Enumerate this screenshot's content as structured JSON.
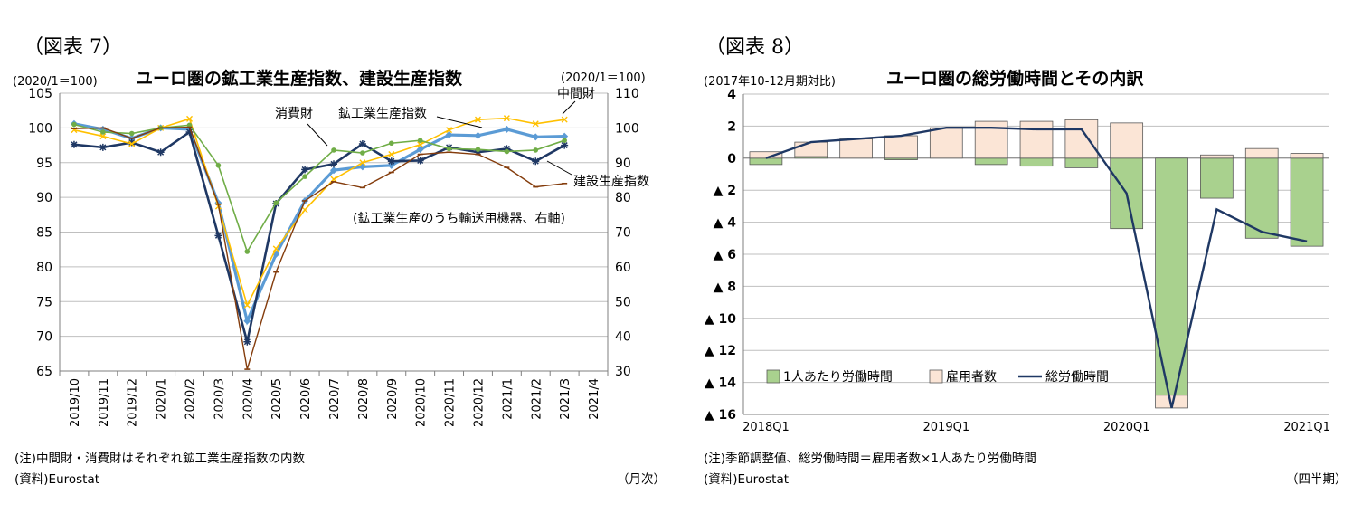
{
  "left": {
    "figure_label": "（図表 7）",
    "unit_left": "(2020/1＝100)",
    "unit_right": "(2020/1＝100)",
    "title": "ユーロ圏の鉱工業生産指数、建設生産指数",
    "note": "(注)中間財・消費財はそれぞれ鉱工業生産指数の内数",
    "source": "(資料)Eurostat",
    "period": "（月次）",
    "colors": {
      "industry": "#5b9bd5",
      "construction": "#1f3864",
      "intermediate": "#ffc000",
      "consumer": "#70ad47",
      "transport": "#843c0c"
    }
  },
  "right": {
    "figure_label": "（図表 8）",
    "unit": "(2017年10-12月期対比)",
    "title": "ユーロ圏の総労働時間とその内訳",
    "note": "(注)季節調整値、総労働時間＝雇用者数×1人あたり労働時間",
    "source": "(資料)Eurostat",
    "period": "（四半期）",
    "colors": {
      "hours_per_worker": "#a9d18e",
      "employees": "#fbe5d6",
      "total_hours": "#1f3864"
    }
  },
  "chart_data": [
    {
      "type": "line",
      "title": "ユーロ圏の鉱工業生産指数、建設生産指数",
      "ylabel_left": "(2020/1＝100)",
      "ylabel_right": "(2020/1＝100)",
      "categories": [
        "2019/10",
        "2019/11",
        "2019/12",
        "2020/1",
        "2020/2",
        "2020/3",
        "2020/4",
        "2020/5",
        "2020/6",
        "2020/7",
        "2020/8",
        "2020/9",
        "2020/10",
        "2020/11",
        "2020/12",
        "2021/1",
        "2021/2",
        "2021/3",
        "2021/4"
      ],
      "ylim_left": [
        65,
        105
      ],
      "yticks_left": [
        65,
        70,
        75,
        80,
        85,
        90,
        95,
        100,
        105
      ],
      "ylim_right": [
        30,
        110
      ],
      "yticks_right": [
        30,
        40,
        50,
        60,
        70,
        80,
        90,
        100,
        110
      ],
      "series": [
        {
          "name": "鉱工業生産指数",
          "axis": "left",
          "values": [
            100.6,
            99.8,
            98.5,
            100.0,
            99.8,
            89.2,
            72.2,
            81.8,
            89.5,
            93.9,
            94.4,
            94.6,
            96.9,
            99.0,
            98.9,
            99.8,
            98.7,
            98.8,
            null
          ]
        },
        {
          "name": "建設生産指数",
          "axis": "left",
          "values": [
            97.6,
            97.2,
            97.9,
            96.5,
            99.4,
            84.5,
            69.2,
            89.1,
            94.0,
            94.8,
            97.7,
            95.2,
            95.3,
            97.2,
            96.5,
            97.0,
            95.2,
            97.5,
            null
          ]
        },
        {
          "name": "中間財",
          "axis": "left",
          "values": [
            99.7,
            98.8,
            97.7,
            100.0,
            101.3,
            88.7,
            74.5,
            82.6,
            88.2,
            92.6,
            95.0,
            96.2,
            97.6,
            99.7,
            101.2,
            101.4,
            100.6,
            101.2,
            null
          ]
        },
        {
          "name": "消費財",
          "axis": "left",
          "values": [
            100.5,
            99.4,
            99.2,
            100.0,
            100.4,
            94.6,
            82.2,
            89.2,
            93.0,
            96.8,
            96.4,
            97.8,
            98.2,
            97.0,
            96.9,
            96.6,
            96.8,
            98.2,
            null
          ]
        },
        {
          "name": "(鉱工業生産のうち輸送用機器、右軸)",
          "axis": "right",
          "values": [
            99.8,
            100.0,
            97.0,
            100.0,
            100.2,
            78.0,
            30.5,
            58.5,
            79.0,
            84.5,
            82.8,
            87.2,
            92.4,
            93.0,
            92.4,
            88.6,
            83.0,
            84.0,
            null
          ]
        }
      ]
    },
    {
      "type": "bar",
      "title": "ユーロ圏の総労働時間とその内訳",
      "ylabel": "(2017年10-12月期対比)",
      "categories": [
        "2018Q1",
        "2018Q2",
        "2018Q3",
        "2018Q4",
        "2019Q1",
        "2019Q2",
        "2019Q3",
        "2019Q4",
        "2020Q1",
        "2020Q2",
        "2020Q3",
        "2020Q4",
        "2021Q1"
      ],
      "x_tick_labels": [
        "2018Q1",
        "2019Q1",
        "2020Q1",
        "2021Q1"
      ],
      "ylim": [
        -16,
        4
      ],
      "yticks": [
        4,
        2,
        0,
        -2,
        -4,
        -6,
        -8,
        -10,
        -12,
        -14,
        -16
      ],
      "ytick_labels": [
        "4",
        "2",
        "0",
        "▲ 2",
        "▲ 4",
        "▲ 6",
        "▲ 8",
        "▲ 10",
        "▲ 12",
        "▲ 14",
        "▲ 16"
      ],
      "series": [
        {
          "name": "1人あたり労働時間",
          "type": "bar",
          "values": [
            -0.4,
            0.1,
            0.0,
            -0.1,
            0.0,
            -0.4,
            -0.5,
            -0.6,
            -4.4,
            -14.8,
            -2.5,
            -5.0,
            -5.5
          ]
        },
        {
          "name": "雇用者数",
          "type": "bar",
          "values": [
            0.4,
            0.9,
            1.2,
            1.4,
            1.9,
            2.3,
            2.3,
            2.4,
            2.2,
            -0.8,
            0.2,
            0.6,
            0.3
          ]
        },
        {
          "name": "総労働時間",
          "type": "line",
          "values": [
            0.0,
            1.0,
            1.2,
            1.4,
            1.9,
            1.9,
            1.8,
            1.8,
            -2.2,
            -15.6,
            -3.2,
            -4.6,
            -5.2
          ]
        }
      ],
      "legend_position": "bottom-left"
    }
  ]
}
